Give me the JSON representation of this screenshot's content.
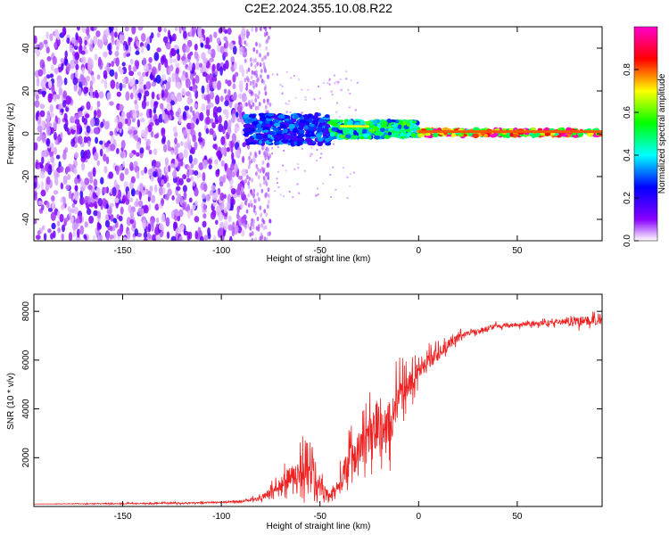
{
  "title": "C2E2.2024.355.10.08.R22",
  "chart_data": [
    {
      "type": "heatmap",
      "xlabel": "Height of straight line (km)",
      "ylabel": "Frequency (Hz)",
      "xlim": [
        -195,
        93
      ],
      "ylim": [
        -50,
        50
      ],
      "xticks": [
        -150,
        -100,
        -50,
        0,
        50
      ],
      "yticks": [
        -40,
        -20,
        0,
        20,
        40
      ],
      "xtick_labels": [
        "-150",
        "-100",
        "-50",
        "0",
        "50"
      ],
      "ytick_labels": [
        "-40",
        "-20",
        "0",
        "20",
        "40"
      ],
      "colorbar": {
        "label": "Normalized spectral amplitude",
        "range": [
          0,
          1
        ],
        "ticks": [
          0.0,
          0.2,
          0.4,
          0.6,
          0.8
        ],
        "tick_labels": [
          "0.0",
          "0.2",
          "0.4",
          "0.6",
          "0.8"
        ],
        "colors": [
          "#ffffff",
          "#8800ff",
          "#0000ff",
          "#00ffff",
          "#00ff00",
          "#ffff00",
          "#ff0000",
          "#ff00cc"
        ]
      },
      "description_regions": [
        {
          "x": [
            -195,
            -88
          ],
          "freq": [
            -50,
            50
          ],
          "level": 0.1
        },
        {
          "x": [
            -88,
            -75
          ],
          "freq": [
            -50,
            50
          ],
          "level": 0.05
        },
        {
          "x": [
            -88,
            -45
          ],
          "freq": [
            -5,
            9
          ],
          "level": 0.3
        },
        {
          "x": [
            -45,
            0
          ],
          "freq": [
            -2,
            6
          ],
          "level": 0.5
        },
        {
          "x": [
            0,
            93
          ],
          "freq": [
            -1,
            2
          ],
          "level": 0.9
        }
      ]
    },
    {
      "type": "line",
      "xlabel": "Height of straight line (km)",
      "ylabel": "SNR (10 * v/v)",
      "xlim": [
        -195,
        93
      ],
      "ylim": [
        0,
        8700
      ],
      "xticks": [
        -150,
        -100,
        -50,
        0,
        50
      ],
      "yticks": [
        2000,
        4000,
        6000,
        8000
      ],
      "xtick_labels": [
        "-150",
        "-100",
        "-50",
        "0",
        "50"
      ],
      "ytick_labels": [
        "2000",
        "4000",
        "6000",
        "8000"
      ],
      "series": [
        {
          "color": "#ee2222",
          "x": [
            -195,
            -150,
            -110,
            -90,
            -80,
            -75,
            -70,
            -65,
            -60,
            -57,
            -54,
            -52,
            -50,
            -47,
            -44,
            -42,
            -40,
            -37,
            -34,
            -30,
            -27,
            -24,
            -22,
            -20,
            -17,
            -14,
            -12,
            -10,
            -5,
            0,
            5,
            10,
            15,
            20,
            25,
            30,
            35,
            40,
            50,
            60,
            70,
            80,
            85,
            93
          ],
          "y": [
            100,
            120,
            150,
            200,
            350,
            600,
            900,
            1200,
            1500,
            2000,
            1700,
            1300,
            900,
            700,
            500,
            700,
            1000,
            1500,
            2000,
            2200,
            2500,
            2800,
            3200,
            3500,
            3000,
            3500,
            4000,
            4500,
            5000,
            5500,
            5900,
            6300,
            6600,
            6900,
            7100,
            7200,
            7300,
            7400,
            7450,
            7500,
            7550,
            7600,
            7600,
            7600
          ],
          "noise": [
            0,
            40,
            50,
            60,
            150,
            300,
            500,
            700,
            1000,
            1500,
            1400,
            900,
            700,
            400,
            300,
            400,
            600,
            900,
            1200,
            1400,
            1500,
            1700,
            1800,
            2000,
            1800,
            1600,
            1500,
            1300,
            900,
            700,
            600,
            500,
            400,
            300,
            200,
            200,
            180,
            160,
            150,
            150,
            180,
            300,
            350,
            250
          ]
        }
      ]
    }
  ]
}
